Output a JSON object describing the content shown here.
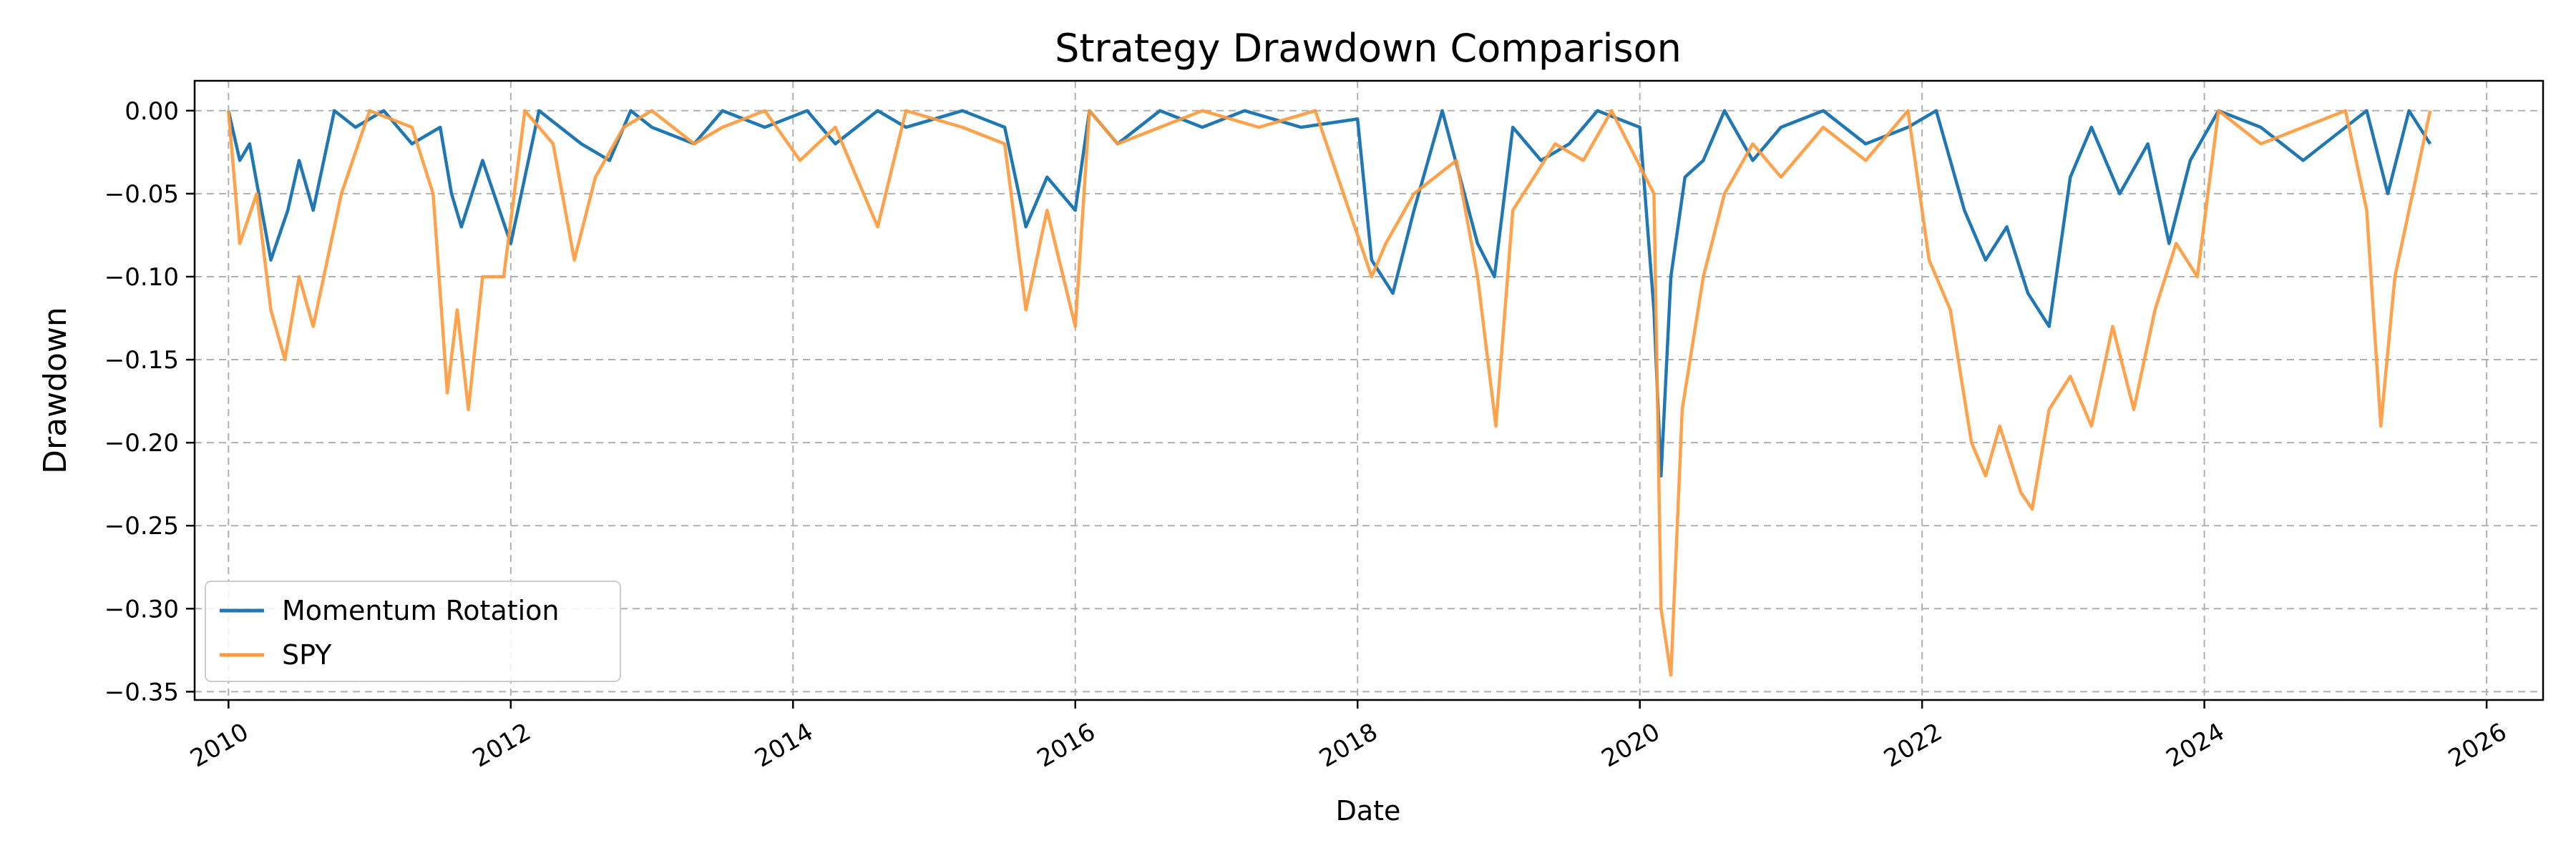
{
  "chart_data": {
    "type": "line",
    "title": "Strategy Drawdown Comparison",
    "xlabel": "Date",
    "ylabel": "Drawdown",
    "xlim": [
      2009.76,
      2026.4
    ],
    "ylim": [
      -0.355,
      0.018
    ],
    "x_ticks": [
      2010,
      2012,
      2014,
      2016,
      2018,
      2020,
      2022,
      2024,
      2026
    ],
    "y_ticks": [
      0.0,
      -0.05,
      -0.1,
      -0.15,
      -0.2,
      -0.25,
      -0.3,
      -0.35
    ],
    "y_tick_labels": [
      "0.00",
      "−0.05",
      "−0.10",
      "−0.15",
      "−0.20",
      "−0.25",
      "−0.30",
      "−0.35"
    ],
    "grid": true,
    "legend_position": "lower-left",
    "series": [
      {
        "name": "Momentum Rotation",
        "color": "#1f77b4",
        "x": [
          2010.0,
          2010.08,
          2010.15,
          2010.3,
          2010.42,
          2010.5,
          2010.6,
          2010.75,
          2010.9,
          2011.1,
          2011.3,
          2011.5,
          2011.58,
          2011.65,
          2011.8,
          2012.0,
          2012.2,
          2012.5,
          2012.7,
          2012.85,
          2013.0,
          2013.3,
          2013.5,
          2013.8,
          2014.1,
          2014.3,
          2014.6,
          2014.8,
          2015.2,
          2015.5,
          2015.65,
          2015.8,
          2016.0,
          2016.1,
          2016.3,
          2016.6,
          2016.9,
          2017.2,
          2017.6,
          2018.0,
          2018.1,
          2018.25,
          2018.4,
          2018.6,
          2018.85,
          2018.97,
          2019.1,
          2019.3,
          2019.5,
          2019.7,
          2020.0,
          2020.1,
          2020.15,
          2020.22,
          2020.32,
          2020.45,
          2020.6,
          2020.8,
          2021.0,
          2021.3,
          2021.6,
          2021.9,
          2022.1,
          2022.3,
          2022.45,
          2022.6,
          2022.75,
          2022.9,
          2023.05,
          2023.2,
          2023.4,
          2023.6,
          2023.75,
          2023.9,
          2024.1,
          2024.4,
          2024.7,
          2025.0,
          2025.15,
          2025.3,
          2025.45,
          2025.6
        ],
        "values": [
          0.0,
          -0.03,
          -0.02,
          -0.09,
          -0.06,
          -0.03,
          -0.06,
          0.0,
          -0.01,
          0.0,
          -0.02,
          -0.01,
          -0.05,
          -0.07,
          -0.03,
          -0.08,
          0.0,
          -0.02,
          -0.03,
          0.0,
          -0.01,
          -0.02,
          0.0,
          -0.01,
          0.0,
          -0.02,
          0.0,
          -0.01,
          0.0,
          -0.01,
          -0.07,
          -0.04,
          -0.06,
          0.0,
          -0.02,
          0.0,
          -0.01,
          0.0,
          -0.01,
          -0.005,
          -0.09,
          -0.11,
          -0.06,
          0.0,
          -0.08,
          -0.1,
          -0.01,
          -0.03,
          -0.02,
          0.0,
          -0.01,
          -0.12,
          -0.22,
          -0.1,
          -0.04,
          -0.03,
          0.0,
          -0.03,
          -0.01,
          0.0,
          -0.02,
          -0.01,
          0.0,
          -0.06,
          -0.09,
          -0.07,
          -0.11,
          -0.13,
          -0.04,
          -0.01,
          -0.05,
          -0.02,
          -0.08,
          -0.03,
          0.0,
          -0.01,
          -0.03,
          -0.01,
          0.0,
          -0.05,
          0.0,
          -0.02
        ]
      },
      {
        "name": "SPY",
        "color": "#ff9a3c",
        "x": [
          2010.0,
          2010.08,
          2010.2,
          2010.3,
          2010.4,
          2010.5,
          2010.6,
          2010.8,
          2011.0,
          2011.3,
          2011.45,
          2011.55,
          2011.62,
          2011.7,
          2011.8,
          2011.95,
          2012.1,
          2012.3,
          2012.45,
          2012.6,
          2012.8,
          2013.0,
          2013.3,
          2013.5,
          2013.8,
          2014.05,
          2014.3,
          2014.6,
          2014.8,
          2015.2,
          2015.5,
          2015.65,
          2015.8,
          2016.0,
          2016.1,
          2016.3,
          2016.6,
          2016.9,
          2017.3,
          2017.7,
          2018.1,
          2018.2,
          2018.4,
          2018.7,
          2018.85,
          2018.98,
          2019.1,
          2019.4,
          2019.6,
          2019.8,
          2020.1,
          2020.15,
          2020.22,
          2020.3,
          2020.45,
          2020.6,
          2020.8,
          2021.0,
          2021.3,
          2021.6,
          2021.9,
          2022.05,
          2022.2,
          2022.35,
          2022.45,
          2022.55,
          2022.7,
          2022.78,
          2022.9,
          2023.05,
          2023.2,
          2023.35,
          2023.5,
          2023.65,
          2023.8,
          2023.95,
          2024.1,
          2024.4,
          2024.7,
          2025.0,
          2025.15,
          2025.25,
          2025.35,
          2025.5,
          2025.6
        ],
        "values": [
          0.0,
          -0.08,
          -0.05,
          -0.12,
          -0.15,
          -0.1,
          -0.13,
          -0.05,
          0.0,
          -0.01,
          -0.05,
          -0.17,
          -0.12,
          -0.18,
          -0.1,
          -0.1,
          0.0,
          -0.02,
          -0.09,
          -0.04,
          -0.01,
          0.0,
          -0.02,
          -0.01,
          0.0,
          -0.03,
          -0.01,
          -0.07,
          0.0,
          -0.01,
          -0.02,
          -0.12,
          -0.06,
          -0.13,
          0.0,
          -0.02,
          -0.01,
          0.0,
          -0.01,
          0.0,
          -0.1,
          -0.08,
          -0.05,
          -0.03,
          -0.1,
          -0.19,
          -0.06,
          -0.02,
          -0.03,
          0.0,
          -0.05,
          -0.3,
          -0.34,
          -0.18,
          -0.1,
          -0.05,
          -0.02,
          -0.04,
          -0.01,
          -0.03,
          0.0,
          -0.09,
          -0.12,
          -0.2,
          -0.22,
          -0.19,
          -0.23,
          -0.24,
          -0.18,
          -0.16,
          -0.19,
          -0.13,
          -0.18,
          -0.12,
          -0.08,
          -0.1,
          0.0,
          -0.02,
          -0.01,
          0.0,
          -0.06,
          -0.19,
          -0.1,
          -0.04,
          0.0
        ]
      }
    ]
  }
}
